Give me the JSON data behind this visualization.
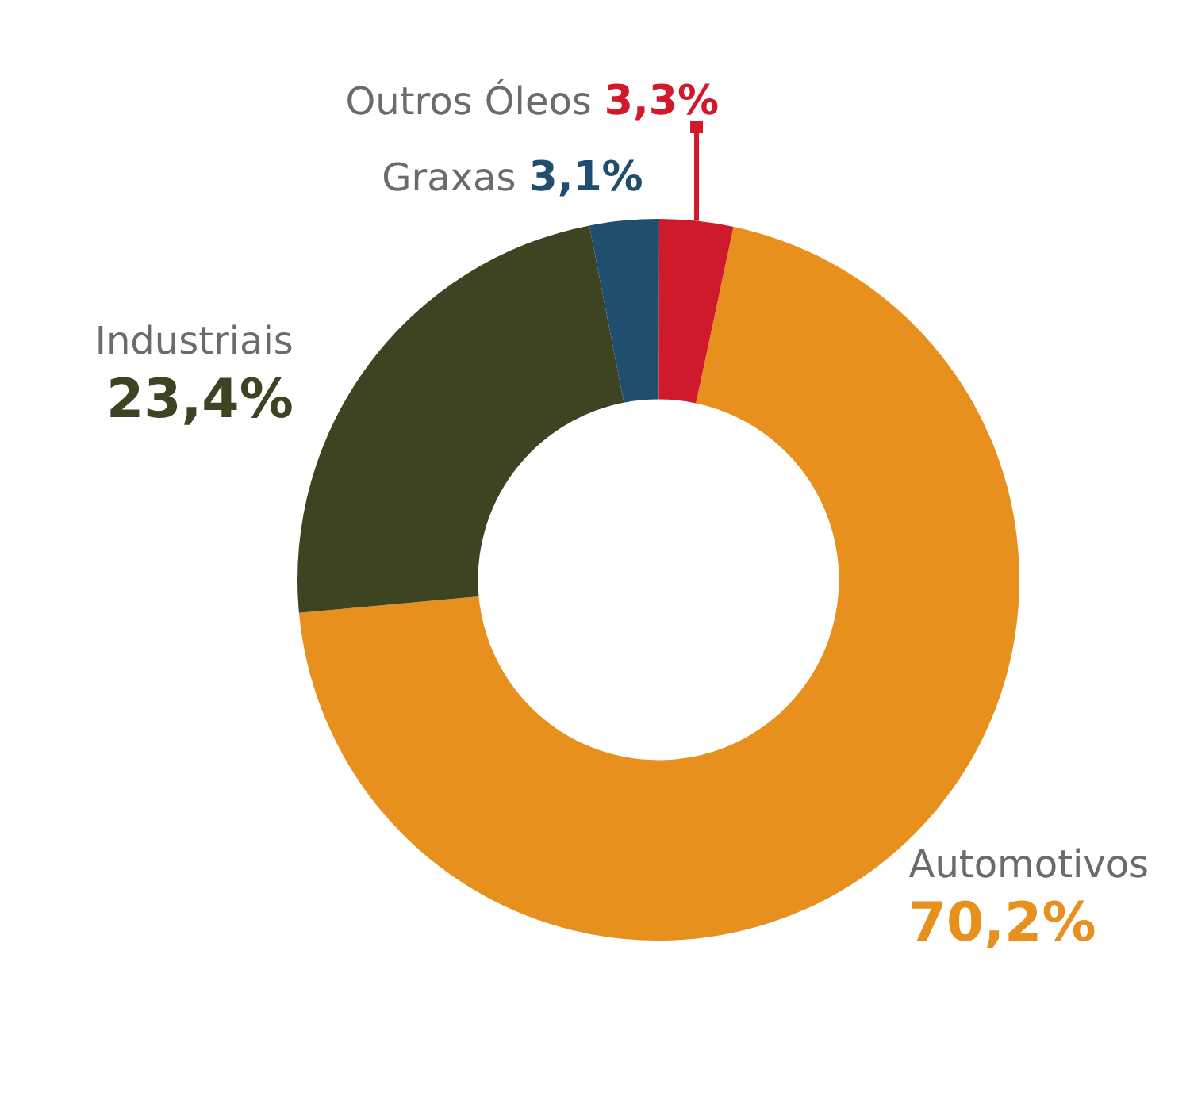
{
  "chart_data": {
    "type": "donut",
    "categories": [
      "Automotivos",
      "Industriais",
      "Graxas",
      "Outros Óleos"
    ],
    "values": [
      70.2,
      23.4,
      3.1,
      3.3
    ],
    "colors": [
      "#e8901e",
      "#3d4421",
      "#1f4e6e",
      "#d0192b"
    ],
    "value_labels": [
      "70,2%",
      "23,4%",
      "3,1%",
      "3,3%"
    ],
    "legend": false
  }
}
